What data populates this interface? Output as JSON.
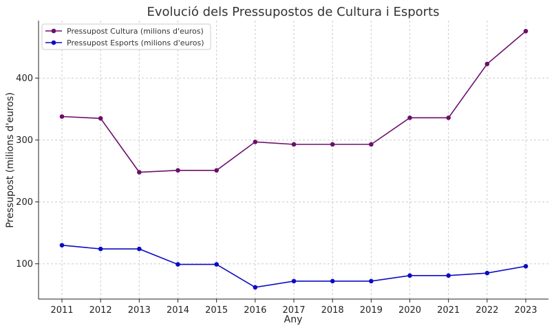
{
  "chart_data": {
    "type": "line",
    "title": "Evolució dels Pressupostos de Cultura i Esports",
    "xlabel": "Any",
    "ylabel": "Pressupost (milions d'euros)",
    "x": [
      2011,
      2012,
      2013,
      2014,
      2015,
      2016,
      2017,
      2018,
      2019,
      2020,
      2021,
      2022,
      2023
    ],
    "yticks": [
      100,
      200,
      300,
      400
    ],
    "ylim": [
      43,
      493
    ],
    "grid": true,
    "legend_position": "top-left",
    "series": [
      {
        "name": "Pressupost Cultura (milions d'euros)",
        "color": "#6b0f6b",
        "values": [
          338,
          335,
          248,
          251,
          251,
          297,
          293,
          293,
          293,
          336,
          336,
          423,
          476
        ]
      },
      {
        "name": "Pressupost Esports (milions d'euros)",
        "color": "#0b0bc4",
        "values": [
          130,
          124,
          124,
          99,
          99,
          62,
          72,
          72,
          72,
          81,
          81,
          85,
          96
        ]
      }
    ]
  }
}
